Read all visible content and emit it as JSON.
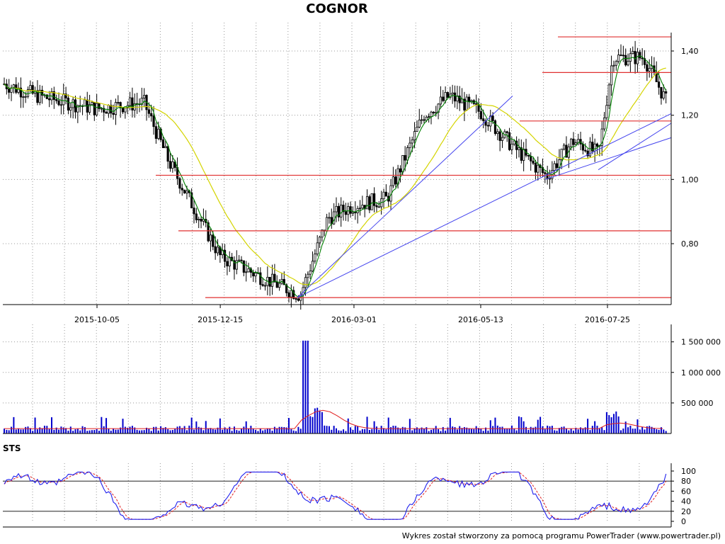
{
  "title": "COGNOR",
  "footer": "Wykres został stworzony za pomocą programu PowerTrader (www.powertrader.pl)",
  "colors": {
    "candle": "#000000",
    "ma_short": "#008000",
    "ma_long": "#d4d400",
    "support_lines": "#e03030",
    "trend_lines": "#4444ee",
    "volume_bars": "#0000cc",
    "volume_avg": "#e02020",
    "sts_k": "#2020ee",
    "sts_d": "#e02020"
  },
  "chart_data": [
    {
      "type": "candlestick",
      "title": "COGNOR",
      "x_dates": [
        "2015-10-05",
        "2015-12-15",
        "2016-03-01",
        "2016-05-13",
        "2016-07-25"
      ],
      "y_ticks": [
        1.4,
        1.2,
        1.0,
        0.8
      ],
      "y_tick_labels": [
        "1,40",
        "1,20",
        "1,00",
        "0,80"
      ],
      "ylim": [
        0.62,
        1.46
      ],
      "grid": true,
      "close_approx": [
        {
          "date": "2015-08-01",
          "value": 1.32
        },
        {
          "date": "2015-09-01",
          "value": 1.26
        },
        {
          "date": "2015-10-05",
          "value": 1.22
        },
        {
          "date": "2015-11-01",
          "value": 1.24
        },
        {
          "date": "2015-11-15",
          "value": 1.06
        },
        {
          "date": "2015-12-15",
          "value": 0.76
        },
        {
          "date": "2016-01-10",
          "value": 0.69
        },
        {
          "date": "2016-01-30",
          "value": 0.64
        },
        {
          "date": "2016-02-15",
          "value": 0.88
        },
        {
          "date": "2016-03-01",
          "value": 0.92
        },
        {
          "date": "2016-03-20",
          "value": 0.94
        },
        {
          "date": "2016-04-10",
          "value": 1.2
        },
        {
          "date": "2016-04-25",
          "value": 1.26
        },
        {
          "date": "2016-05-13",
          "value": 1.21
        },
        {
          "date": "2016-06-01",
          "value": 1.1
        },
        {
          "date": "2016-06-20",
          "value": 1.01
        },
        {
          "date": "2016-07-05",
          "value": 1.12
        },
        {
          "date": "2016-07-20",
          "value": 1.08
        },
        {
          "date": "2016-07-28",
          "value": 1.38
        },
        {
          "date": "2016-08-15",
          "value": 1.38
        },
        {
          "date": "2016-09-01",
          "value": 1.2
        },
        {
          "date": "2016-09-10",
          "value": 1.26
        }
      ],
      "horizontal_levels": [
        1.444,
        1.333,
        1.182,
        1.013,
        0.84,
        0.632
      ]
    },
    {
      "type": "bar",
      "panel": "volume",
      "y_ticks": [
        1500000,
        1000000,
        500000
      ],
      "y_tick_labels": [
        "1 500 000",
        "1 000 000",
        "500 000"
      ],
      "ylim": [
        0,
        1600000
      ],
      "peak": {
        "date": "2016-02-02",
        "value": 1520000
      }
    },
    {
      "type": "line",
      "title": "STS",
      "y_ticks": [
        100,
        80,
        60,
        40,
        20,
        0
      ],
      "y_tick_labels": [
        "100",
        "80",
        "60",
        "40",
        "20",
        "0"
      ],
      "ylim": [
        0,
        100
      ],
      "levels": [
        80,
        20
      ]
    }
  ]
}
